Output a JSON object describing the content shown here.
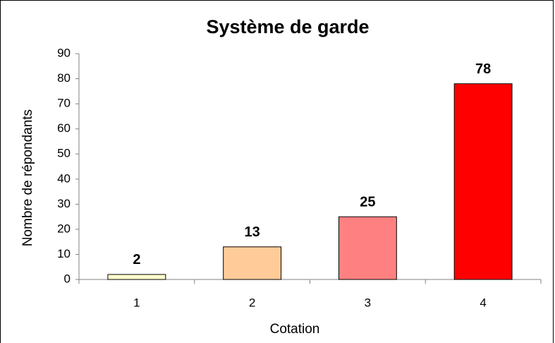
{
  "chart_data": {
    "type": "bar",
    "title": "Système de garde",
    "x_label": "Cotation",
    "y_label": "Nombre de répondants",
    "categories": [
      "1",
      "2",
      "3",
      "4"
    ],
    "values": [
      2,
      13,
      25,
      78
    ],
    "colors": [
      "#ffffcc",
      "#ffcc99",
      "#ff8080",
      "#ff0000"
    ],
    "ylim": [
      0,
      90
    ],
    "yticks": [
      0,
      10,
      20,
      30,
      40,
      50,
      60,
      70,
      80,
      90
    ],
    "grid": false
  }
}
